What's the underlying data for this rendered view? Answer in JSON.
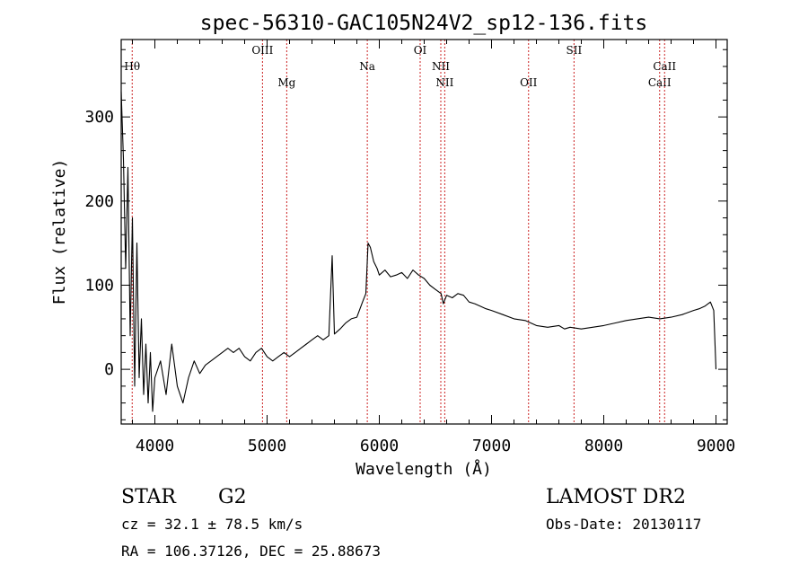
{
  "chart_data": {
    "type": "line",
    "title": "spec-56310-GAC105N24V2_sp12-136.fits",
    "xlabel": "Wavelength (Å)",
    "ylabel": "Flux (relative)",
    "xlim": [
      3700,
      9100
    ],
    "ylim": [
      -65,
      392
    ],
    "x_ticks": [
      4000,
      5000,
      6000,
      7000,
      8000,
      9000
    ],
    "y_ticks": [
      0,
      100,
      200,
      300
    ],
    "grid": false,
    "line_color": "#000000",
    "marker_color": "#cc2222",
    "spectral_lines": [
      {
        "name": "Hθ",
        "wavelength": 3798,
        "label_row": 1
      },
      {
        "name": "OIII",
        "wavelength": 4959,
        "label_row": 0
      },
      {
        "name": "Mg",
        "wavelength": 5175,
        "label_row": 2
      },
      {
        "name": "Na",
        "wavelength": 5893,
        "label_row": 1
      },
      {
        "name": "OI",
        "wavelength": 6364,
        "label_row": 0
      },
      {
        "name": "NII",
        "wavelength": 6548,
        "label_row": 1
      },
      {
        "name": "NII",
        "wavelength": 6583,
        "label_row": 2
      },
      {
        "name": "OII",
        "wavelength": 7330,
        "label_row": 2
      },
      {
        "name": "SII",
        "wavelength": 7735,
        "label_row": 0
      },
      {
        "name": "CaII",
        "wavelength": 8498,
        "label_row": 2
      },
      {
        "name": "CaII",
        "wavelength": 8542,
        "label_row": 1
      }
    ],
    "series": [
      {
        "x": [
          3700,
          3720,
          3740,
          3760,
          3780,
          3800,
          3820,
          3840,
          3860,
          3880,
          3900,
          3920,
          3940,
          3960,
          3980,
          4000,
          4050,
          4100,
          4150,
          4200,
          4250,
          4300,
          4350,
          4400,
          4450,
          4500,
          4550,
          4600,
          4650,
          4700,
          4750,
          4800,
          4850,
          4900,
          4950,
          5000,
          5050,
          5100,
          5150,
          5200,
          5250,
          5300,
          5350,
          5400,
          5450,
          5500,
          5550,
          5580,
          5600,
          5650,
          5700,
          5750,
          5800,
          5850,
          5880,
          5900,
          5920,
          5950,
          5980,
          6000,
          6050,
          6100,
          6150,
          6200,
          6250,
          6300,
          6350,
          6400,
          6450,
          6500,
          6550,
          6570,
          6600,
          6650,
          6700,
          6750,
          6800,
          6850,
          6900,
          6950,
          7000,
          7100,
          7200,
          7300,
          7400,
          7500,
          7600,
          7650,
          7700,
          7800,
          7900,
          8000,
          8100,
          8200,
          8300,
          8400,
          8500,
          8600,
          8700,
          8800,
          8850,
          8900,
          8950,
          8980,
          9000
        ],
        "y": [
          330,
          250,
          120,
          240,
          40,
          180,
          -20,
          150,
          -10,
          60,
          -30,
          30,
          -40,
          20,
          -50,
          -10,
          10,
          -30,
          30,
          -20,
          -40,
          -10,
          10,
          -5,
          5,
          10,
          15,
          20,
          25,
          20,
          25,
          15,
          10,
          20,
          25,
          15,
          10,
          15,
          20,
          15,
          20,
          25,
          30,
          35,
          40,
          35,
          40,
          135,
          42,
          48,
          55,
          60,
          62,
          80,
          90,
          150,
          145,
          128,
          120,
          112,
          118,
          110,
          112,
          115,
          108,
          118,
          112,
          108,
          100,
          95,
          90,
          78,
          88,
          85,
          90,
          88,
          80,
          78,
          75,
          72,
          70,
          65,
          60,
          58,
          52,
          50,
          52,
          48,
          50,
          48,
          50,
          52,
          55,
          58,
          60,
          62,
          60,
          62,
          65,
          70,
          72,
          75,
          80,
          70,
          0
        ]
      }
    ]
  },
  "info": {
    "object_type": "STAR",
    "subclass": "G2",
    "survey": "LAMOST DR2",
    "cz": "cz = 32.1 ± 78.5 km/s",
    "obs_date": "Obs-Date: 20130117",
    "coords": "RA = 106.37126, DEC =  25.88673"
  }
}
